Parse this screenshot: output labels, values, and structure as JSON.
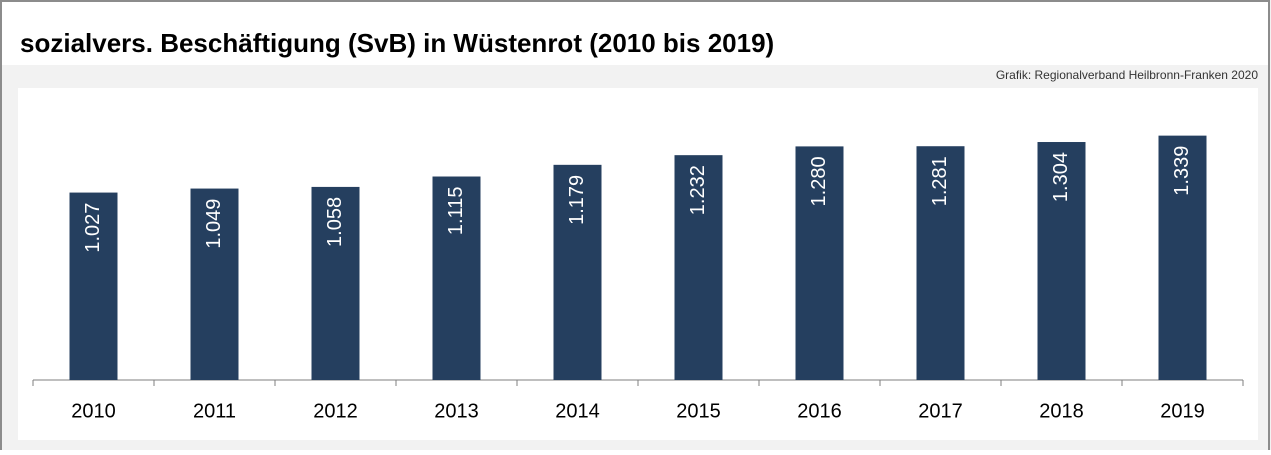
{
  "chart_data": {
    "type": "bar",
    "title": "sozialvers. Beschäftigung (SvB) in Wüstenrot (2010 bis 2019)",
    "source": "Grafik: Regionalverband Heilbronn-Franken 2020",
    "categories": [
      "2010",
      "2011",
      "2012",
      "2013",
      "2014",
      "2015",
      "2016",
      "2017",
      "2018",
      "2019"
    ],
    "values": [
      1027,
      1049,
      1058,
      1115,
      1179,
      1232,
      1280,
      1281,
      1304,
      1339
    ],
    "value_labels": [
      "1.027",
      "1.049",
      "1.058",
      "1.115",
      "1.179",
      "1.232",
      "1.280",
      "1.281",
      "1.304",
      "1.339"
    ],
    "color": "#253f5f",
    "ylim": [
      0,
      1600
    ]
  }
}
